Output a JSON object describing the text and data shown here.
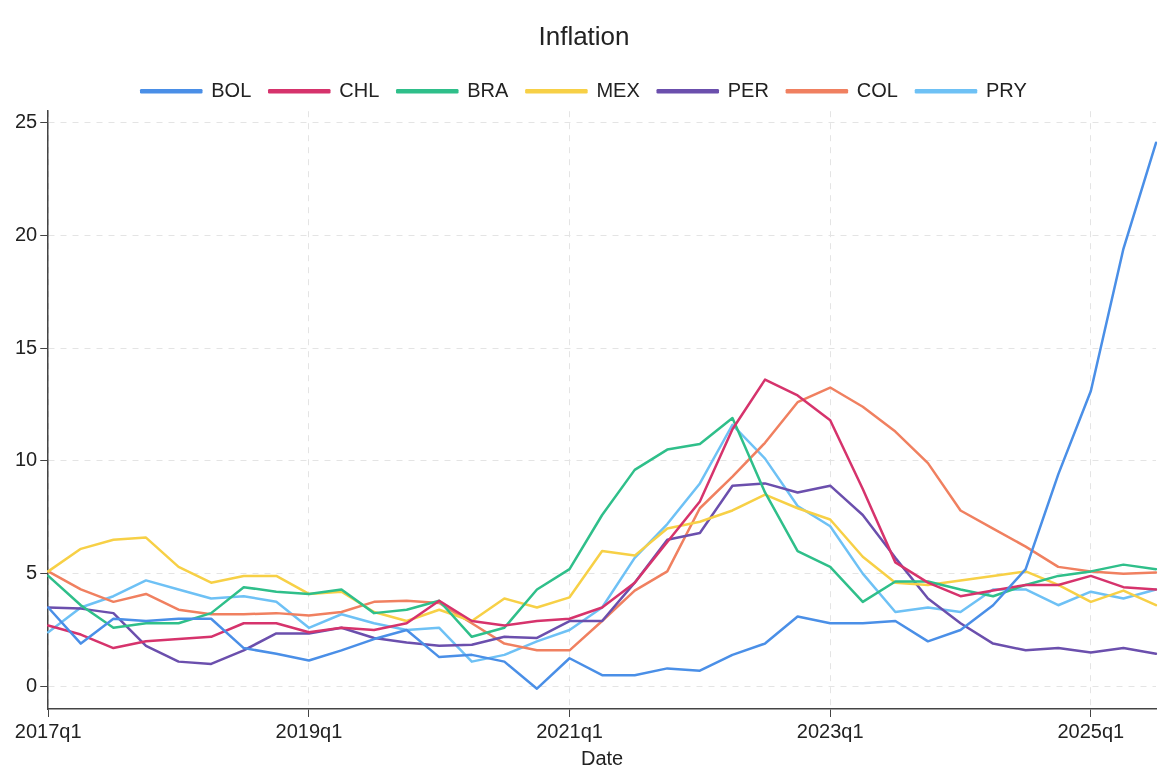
{
  "chart_data": {
    "type": "line",
    "title": "Inflation",
    "xlabel": "Date",
    "categories": [
      "2017q1",
      null,
      null,
      null,
      null,
      null,
      null,
      null,
      "2019q1",
      null,
      null,
      null,
      null,
      null,
      null,
      null,
      "2021q1",
      null,
      null,
      null,
      null,
      null,
      null,
      null,
      "2023q1",
      null,
      null,
      null,
      null,
      null,
      null,
      null,
      "2025q1",
      null,
      null
    ],
    "ylim": [
      -1,
      25.5
    ],
    "yticks": [
      0,
      5,
      10,
      15,
      20,
      25
    ],
    "grid": true,
    "legend": "top",
    "marker": "none",
    "line_style": "solid",
    "series": [
      {
        "name": "BOL",
        "color": "#4a8fe7",
        "values": [
          3.5,
          1.9,
          3.0,
          2.9,
          3.0,
          3.0,
          1.7,
          1.45,
          1.15,
          1.6,
          2.1,
          2.5,
          1.3,
          1.4,
          1.1,
          -0.1,
          1.25,
          0.5,
          0.5,
          0.8,
          0.7,
          1.4,
          1.9,
          3.1,
          2.8,
          2.8,
          2.9,
          2.0,
          2.5,
          3.6,
          5.2,
          9.4,
          13.1,
          19.4,
          24.1
        ]
      },
      {
        "name": "CHL",
        "color": "#d6336c",
        "values": [
          2.7,
          2.3,
          1.7,
          2.0,
          2.1,
          2.2,
          2.8,
          2.8,
          2.4,
          2.6,
          2.5,
          2.8,
          3.8,
          2.9,
          2.7,
          2.9,
          3.0,
          3.5,
          4.6,
          6.4,
          8.2,
          11.4,
          13.6,
          12.9,
          11.8,
          8.75,
          5.5,
          4.6,
          4.0,
          4.25,
          4.5,
          4.5,
          4.9,
          4.4,
          4.3
        ]
      },
      {
        "name": "BRA",
        "color": "#2fbf8a",
        "values": [
          4.9,
          3.6,
          2.6,
          2.8,
          2.8,
          3.25,
          4.4,
          4.2,
          4.1,
          4.3,
          3.25,
          3.4,
          3.8,
          2.2,
          2.6,
          4.3,
          5.2,
          7.6,
          9.6,
          10.5,
          10.75,
          11.9,
          8.6,
          6.0,
          5.3,
          3.75,
          4.65,
          4.65,
          4.3,
          4.0,
          4.5,
          4.9,
          5.1,
          5.4,
          5.2
        ]
      },
      {
        "name": "MEX",
        "color": "#f7d046",
        "values": [
          5.1,
          6.1,
          6.5,
          6.6,
          5.3,
          4.6,
          4.9,
          4.9,
          4.1,
          4.2,
          3.3,
          2.9,
          3.4,
          2.9,
          3.9,
          3.5,
          3.95,
          6.0,
          5.8,
          7.0,
          7.3,
          7.8,
          8.5,
          7.9,
          7.4,
          5.75,
          4.6,
          4.5,
          4.7,
          4.9,
          5.1,
          4.5,
          3.75,
          4.25,
          3.6
        ]
      },
      {
        "name": "PER",
        "color": "#6b4fad",
        "values": [
          3.5,
          3.45,
          3.25,
          1.8,
          1.1,
          1.0,
          1.6,
          2.35,
          2.35,
          2.6,
          2.15,
          1.95,
          1.8,
          1.85,
          2.2,
          2.15,
          2.9,
          2.9,
          4.6,
          6.5,
          6.8,
          8.9,
          9.0,
          8.6,
          8.9,
          7.6,
          5.7,
          3.9,
          2.8,
          1.9,
          1.6,
          1.7,
          1.5,
          1.7,
          1.45
        ]
      },
      {
        "name": "COL",
        "color": "#f08060",
        "values": [
          5.1,
          4.3,
          3.75,
          4.1,
          3.4,
          3.2,
          3.2,
          3.25,
          3.15,
          3.3,
          3.75,
          3.8,
          3.7,
          2.8,
          1.9,
          1.6,
          1.6,
          2.9,
          4.25,
          5.1,
          7.9,
          9.3,
          10.8,
          12.6,
          13.25,
          12.4,
          11.3,
          9.9,
          7.8,
          7.0,
          6.2,
          5.3,
          5.1,
          5.0,
          5.05
        ]
      },
      {
        "name": "PRY",
        "color": "#6ec1f5",
        "values": [
          2.4,
          3.5,
          4.0,
          4.7,
          4.3,
          3.9,
          4.0,
          3.75,
          2.6,
          3.2,
          2.8,
          2.5,
          2.6,
          1.1,
          1.4,
          2.0,
          2.5,
          3.5,
          5.7,
          7.2,
          9.0,
          11.6,
          10.1,
          8.0,
          7.1,
          5.0,
          3.3,
          3.5,
          3.3,
          4.3,
          4.3,
          3.6,
          4.2,
          3.9,
          4.3
        ]
      }
    ]
  }
}
